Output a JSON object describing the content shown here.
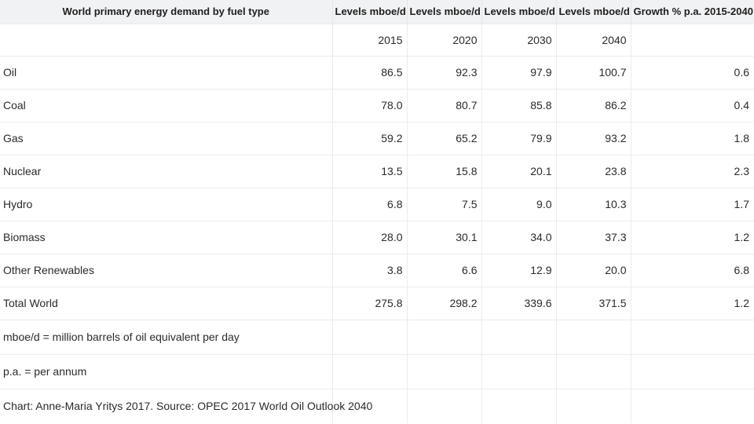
{
  "table": {
    "headers": [
      "World primary energy demand by fuel type",
      "Levels mboe/d",
      "Levels mboe/d",
      "Levels mboe/d",
      "Levels mboe/d",
      "Growth % p.a. 2015-2040"
    ],
    "years": [
      "2015",
      "2020",
      "2030",
      "2040"
    ],
    "rows": [
      {
        "label": "Oil",
        "values": [
          "86.5",
          "92.3",
          "97.9",
          "100.7"
        ],
        "growth": "0.6"
      },
      {
        "label": "Coal",
        "values": [
          "78.0",
          "80.7",
          "85.8",
          "86.2"
        ],
        "growth": "0.4"
      },
      {
        "label": "Gas",
        "values": [
          "59.2",
          "65.2",
          "79.9",
          "93.2"
        ],
        "growth": "1.8"
      },
      {
        "label": "Nuclear",
        "values": [
          "13.5",
          "15.8",
          "20.1",
          "23.8"
        ],
        "growth": "2.3"
      },
      {
        "label": "Hydro",
        "values": [
          "6.8",
          "7.5",
          "9.0",
          "10.3"
        ],
        "growth": "1.7"
      },
      {
        "label": "Biomass",
        "values": [
          "28.0",
          "30.1",
          "34.0",
          "37.3"
        ],
        "growth": "1.2"
      },
      {
        "label": "Other Renewables",
        "values": [
          "3.8",
          "6.6",
          "12.9",
          "20.0"
        ],
        "growth": "6.8"
      },
      {
        "label": "Total World",
        "values": [
          "275.8",
          "298.2",
          "339.6",
          "371.5"
        ],
        "growth": "1.2"
      }
    ],
    "notes": [
      "mboe/d = million barrels of oil equivalent per day",
      "p.a. = per annum",
      "Chart: Anne-Maria Yritys 2017. Source: OPEC 2017 World Oil Outlook 2040"
    ]
  }
}
